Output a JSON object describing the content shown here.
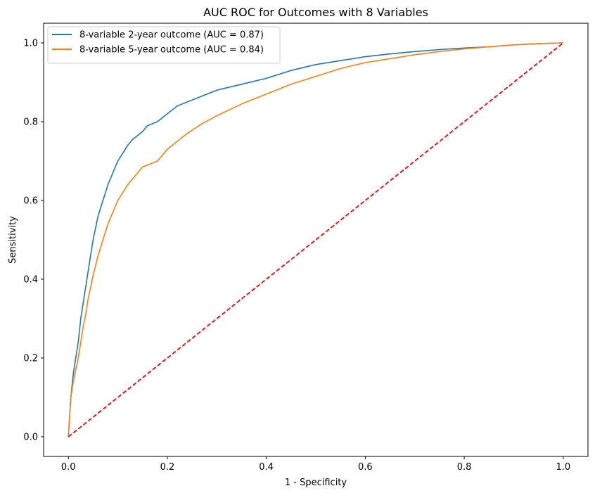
{
  "chart_data": {
    "type": "line",
    "title": "AUC ROC for Outcomes with 8 Variables",
    "xlabel": "1 - Specificity",
    "ylabel": "Sensitivity",
    "xlim": [
      -0.05,
      1.05
    ],
    "ylim": [
      -0.05,
      1.05
    ],
    "xticks": [
      "0.0",
      "0.2",
      "0.4",
      "0.6",
      "0.8",
      "1.0"
    ],
    "yticks": [
      "0.0",
      "0.2",
      "0.4",
      "0.6",
      "0.8",
      "1.0"
    ],
    "grid": false,
    "legend_position": "top-left",
    "series": [
      {
        "name": "8-variable 2-year outcome (AUC = 0.87)",
        "color": "#1f77b4",
        "style": "solid",
        "x": [
          0,
          0.005,
          0.01,
          0.015,
          0.02,
          0.025,
          0.03,
          0.035,
          0.04,
          0.045,
          0.05,
          0.055,
          0.06,
          0.07,
          0.08,
          0.09,
          0.1,
          0.11,
          0.12,
          0.13,
          0.14,
          0.15,
          0.16,
          0.18,
          0.2,
          0.22,
          0.24,
          0.27,
          0.3,
          0.35,
          0.4,
          0.45,
          0.5,
          0.55,
          0.6,
          0.65,
          0.7,
          0.75,
          0.8,
          0.85,
          0.9,
          0.95,
          1.0
        ],
        "y": [
          0,
          0.1,
          0.16,
          0.2,
          0.24,
          0.3,
          0.34,
          0.38,
          0.42,
          0.46,
          0.5,
          0.53,
          0.56,
          0.6,
          0.64,
          0.67,
          0.7,
          0.72,
          0.74,
          0.755,
          0.765,
          0.775,
          0.79,
          0.8,
          0.82,
          0.84,
          0.85,
          0.865,
          0.88,
          0.895,
          0.91,
          0.93,
          0.945,
          0.955,
          0.965,
          0.972,
          0.978,
          0.983,
          0.987,
          0.99,
          0.995,
          0.998,
          1.0
        ]
      },
      {
        "name": "8-variable 5-year outcome (AUC = 0.84)",
        "color": "#ff7f0e",
        "style": "solid",
        "x": [
          0,
          0.005,
          0.01,
          0.015,
          0.02,
          0.025,
          0.03,
          0.035,
          0.04,
          0.05,
          0.06,
          0.07,
          0.08,
          0.09,
          0.1,
          0.11,
          0.12,
          0.13,
          0.14,
          0.15,
          0.16,
          0.18,
          0.2,
          0.22,
          0.24,
          0.27,
          0.3,
          0.35,
          0.4,
          0.45,
          0.5,
          0.55,
          0.6,
          0.65,
          0.7,
          0.75,
          0.8,
          0.85,
          0.9,
          0.95,
          1.0
        ],
        "y": [
          0,
          0.1,
          0.14,
          0.17,
          0.2,
          0.24,
          0.28,
          0.31,
          0.35,
          0.41,
          0.46,
          0.5,
          0.54,
          0.57,
          0.6,
          0.62,
          0.64,
          0.655,
          0.67,
          0.685,
          0.69,
          0.7,
          0.73,
          0.75,
          0.77,
          0.795,
          0.815,
          0.845,
          0.87,
          0.895,
          0.915,
          0.935,
          0.95,
          0.96,
          0.97,
          0.978,
          0.985,
          0.99,
          0.995,
          0.998,
          1.0
        ]
      },
      {
        "name": "",
        "color": "#ff0000",
        "style": "dashed",
        "x": [
          0,
          1
        ],
        "y": [
          0,
          1
        ]
      }
    ]
  }
}
